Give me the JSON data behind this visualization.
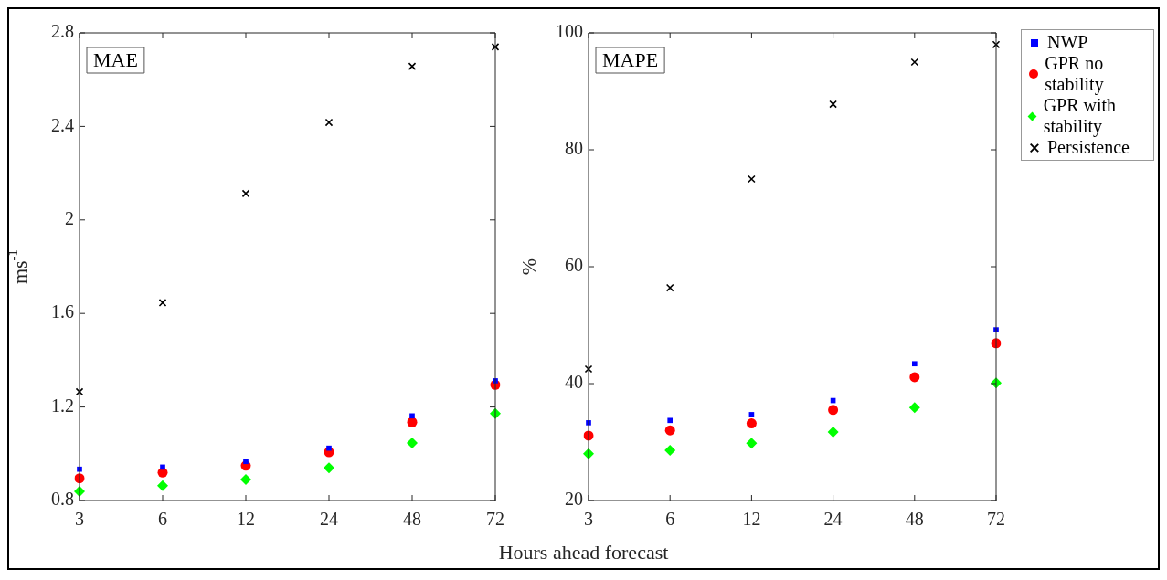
{
  "chart_data": [
    {
      "type": "scatter",
      "categories": [
        "3",
        "6",
        "12",
        "24",
        "48",
        "72"
      ],
      "xlabel": "Hours ahead forecast",
      "ylabel": "ms$^{-1}$",
      "ylim": [
        0.8,
        2.8
      ],
      "yticks": [
        0.8,
        1.2,
        1.6,
        2,
        2.4,
        2.8
      ],
      "annotations": [
        "MAE"
      ],
      "grid": false,
      "legend": false,
      "series": [
        {
          "color": "#0000ff",
          "marker": "square",
          "values": [
            0.934,
            0.943,
            0.967,
            1.024,
            1.162,
            1.312
          ]
        },
        {
          "color": "#ff0000",
          "marker": "circle",
          "values": [
            0.895,
            0.92,
            0.949,
            1.007,
            1.135,
            1.295
          ]
        },
        {
          "color": "#00ff00",
          "marker": "diamond",
          "values": [
            0.839,
            0.863,
            0.89,
            0.94,
            1.046,
            1.172
          ]
        },
        {
          "color": "#000000",
          "marker": "cross",
          "values": [
            1.265,
            1.646,
            2.113,
            2.417,
            2.657,
            2.74
          ]
        }
      ]
    },
    {
      "type": "scatter",
      "categories": [
        "3",
        "6",
        "12",
        "24",
        "48",
        "72"
      ],
      "ylabel": "%",
      "ylim": [
        20,
        100
      ],
      "yticks": [
        20,
        40,
        60,
        80,
        100
      ],
      "annotations": [
        "MAPE"
      ],
      "grid": false,
      "legend": "right",
      "series": [
        {
          "name": "NWP",
          "color": "#0000ff",
          "marker": "square",
          "values": [
            33.3,
            33.7,
            34.7,
            37.1,
            43.4,
            49.2
          ]
        },
        {
          "name": "GPR no stability",
          "color": "#ff0000",
          "marker": "circle",
          "values": [
            31.1,
            32.0,
            33.2,
            35.5,
            41.1,
            46.9
          ]
        },
        {
          "name": "GPR with stability",
          "color": "#00ff00",
          "marker": "diamond",
          "values": [
            28.0,
            28.6,
            29.8,
            31.7,
            35.9,
            40.1
          ]
        },
        {
          "name": "Persistence",
          "color": "#000000",
          "marker": "cross",
          "values": [
            42.5,
            56.4,
            75.0,
            87.8,
            95.0,
            98.0
          ]
        }
      ]
    }
  ]
}
